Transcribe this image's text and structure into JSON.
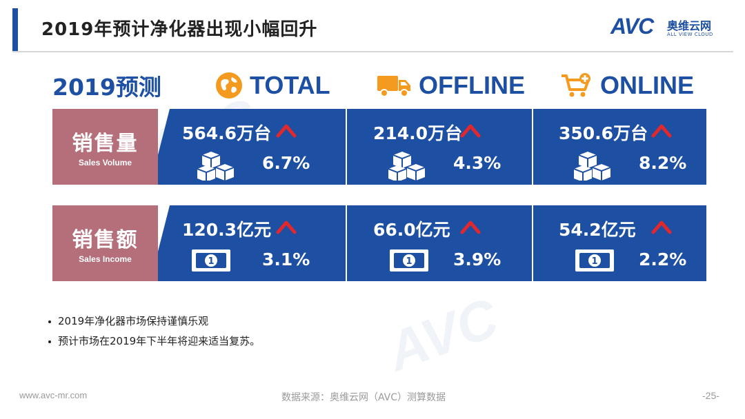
{
  "header": {
    "title": "2019年预计净化器出现小幅回升",
    "logo_avc": "AVC",
    "logo_cn": "奥维云网",
    "logo_en": "ALL VIEW CLOUD"
  },
  "columns": {
    "forecast_label": "2019预测",
    "total": {
      "label": "TOTAL",
      "icon": "globe-icon"
    },
    "offline": {
      "label": "OFFLINE",
      "icon": "truck-icon"
    },
    "online": {
      "label": "ONLINE",
      "icon": "shopping-cart-icon"
    }
  },
  "rows": {
    "volume": {
      "label_cn": "销售量",
      "label_en": "Sales Volume",
      "total": {
        "value": "564.6万台",
        "change": "6.7%"
      },
      "offline": {
        "value": "214.0万台",
        "change": "4.3%"
      },
      "online": {
        "value": "350.6万台",
        "change": "8.2%"
      }
    },
    "income": {
      "label_cn": "销售额",
      "label_en": "Sales Income",
      "total": {
        "value": "120.3亿元",
        "change": "3.1%"
      },
      "offline": {
        "value": "66.0亿元",
        "change": "3.9%"
      },
      "online": {
        "value": "54.2亿元",
        "change": "2.2%"
      }
    }
  },
  "bullets": [
    "2019年净化器市场保持谨慎乐观",
    "预计市场在2019年下半年将迎来适当复苏。"
  ],
  "footer": {
    "website": "www.avc-mr.com",
    "source": "数据来源：奥维云网（AVC）测算数据",
    "page": "-25-"
  },
  "colors": {
    "brand_blue": "#1d4fa3",
    "row_label": "#b46f7a",
    "accent_orange": "#f39a1f",
    "up_arrow": "#e0282e"
  }
}
